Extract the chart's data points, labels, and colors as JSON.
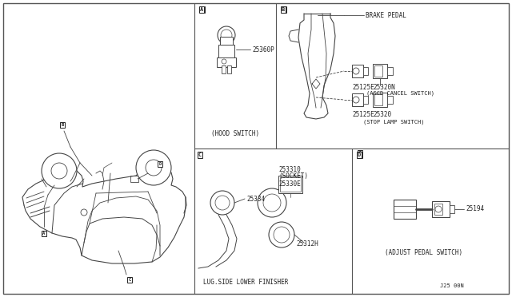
{
  "bg_color": "#ffffff",
  "line_color": "#444444",
  "text_color": "#222222",
  "border_color": "#555555",
  "panel_A_part": "25360P",
  "panel_B_labels": {
    "brake_pedal": "BRAKE PEDAL",
    "ascd_num": "25320N",
    "ascd_name": "(ASCD CANCEL SWITCH)",
    "upper_part": "25125E",
    "lower_part": "25125E",
    "stop_num": "25320",
    "stop_name": "(STOP LAMP SWITCH)"
  },
  "panel_C_labels": {
    "bezel": "25334",
    "socket_num": "253310",
    "socket_name": "(SOCKET)",
    "inner": "25330E",
    "nut": "25312H",
    "caption": "LUG.SIDE LOWER FINISHER"
  },
  "panel_D_labels": {
    "part": "25194",
    "caption": "(ADJUST PEDAL SWITCH)"
  },
  "page_code": "J25 00N"
}
